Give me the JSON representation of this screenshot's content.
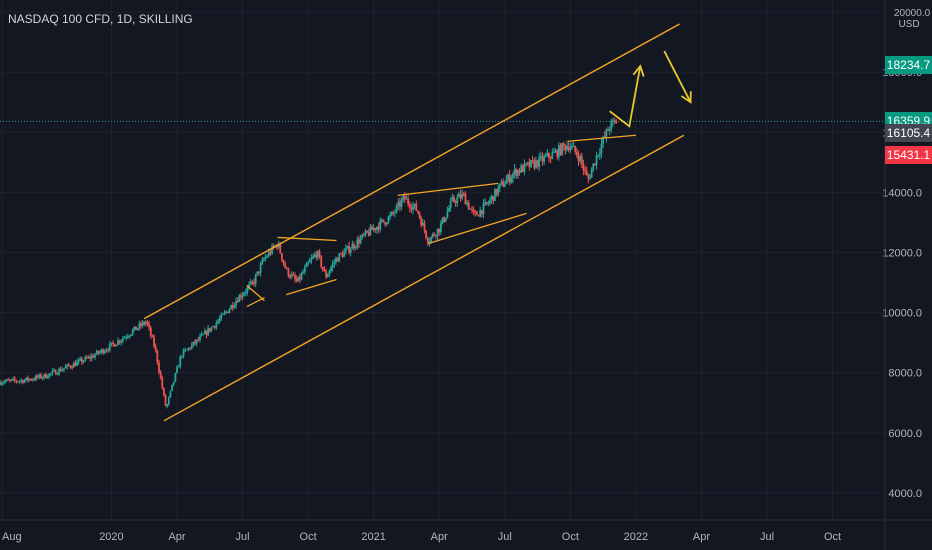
{
  "header": {
    "symbol_line": "NASDAQ 100 CFD, 1D, SKILLING",
    "currency": "USD",
    "top_price": "20000.0"
  },
  "price_tags": [
    {
      "label": "18234.7",
      "value": 18234.7,
      "color": "#089981"
    },
    {
      "label": "16359.9",
      "value": 16359.9,
      "color": "#089981"
    },
    {
      "label": "16105.4",
      "value": 16105.4,
      "color": "#434651"
    },
    {
      "label": "15431.1",
      "value": 15431.1,
      "color": "#f23645"
    }
  ],
  "colors": {
    "background": "#131722",
    "grid": "#1e222d",
    "up": "#26a69a",
    "down": "#ef5350",
    "drawing": "#f5a623",
    "arrow": "#e8c82c"
  },
  "chart_data": {
    "type": "candlestick",
    "y_axis": {
      "ticks": [
        "4000.0",
        "6000.0",
        "8000.0",
        "10000.0",
        "12000.0",
        "14000.0",
        "16000.0",
        "18000.0",
        "20000.0"
      ],
      "tick_values": [
        4000,
        6000,
        8000,
        10000,
        12000,
        14000,
        16000,
        18000,
        20000
      ],
      "range": [
        3100,
        20400
      ]
    },
    "x_axis": {
      "ticks": [
        "Aug",
        "2020",
        "Apr",
        "Jul",
        "Oct",
        "2021",
        "Apr",
        "Jul",
        "Oct",
        "2022",
        "Apr",
        "Jul",
        "Oct"
      ],
      "tick_months": [
        -5,
        0,
        3,
        6,
        9,
        12,
        15,
        18,
        21,
        24,
        27,
        30,
        33
      ],
      "range_months": [
        -5.1,
        35.4
      ]
    },
    "price_path": [
      [
        -5.1,
        7700
      ],
      [
        -4,
        7750
      ],
      [
        -3,
        7900
      ],
      [
        -2,
        8200
      ],
      [
        -1,
        8500
      ],
      [
        0,
        8900
      ],
      [
        0.8,
        9300
      ],
      [
        1.6,
        9700
      ],
      [
        2.0,
        8800
      ],
      [
        2.3,
        7600
      ],
      [
        2.5,
        6800
      ],
      [
        2.8,
        7600
      ],
      [
        3.2,
        8600
      ],
      [
        4,
        9100
      ],
      [
        5,
        9800
      ],
      [
        5.8,
        10500
      ],
      [
        6.5,
        11000
      ],
      [
        7,
        11800
      ],
      [
        7.6,
        12300
      ],
      [
        8.0,
        11400
      ],
      [
        8.5,
        11000
      ],
      [
        9,
        11600
      ],
      [
        9.4,
        12000
      ],
      [
        9.8,
        11200
      ],
      [
        10.3,
        11800
      ],
      [
        11,
        12200
      ],
      [
        12,
        12800
      ],
      [
        12.8,
        13200
      ],
      [
        13.4,
        13800
      ],
      [
        14,
        13400
      ],
      [
        14.5,
        12400
      ],
      [
        15,
        12800
      ],
      [
        15.6,
        13700
      ],
      [
        16.1,
        13900
      ],
      [
        16.6,
        13200
      ],
      [
        17.2,
        13600
      ],
      [
        17.8,
        14200
      ],
      [
        18.5,
        14700
      ],
      [
        19.5,
        15000
      ],
      [
        20.3,
        15300
      ],
      [
        20.9,
        15600
      ],
      [
        21.4,
        15200
      ],
      [
        21.8,
        14400
      ],
      [
        22.3,
        15400
      ],
      [
        22.8,
        16200
      ],
      [
        23.1,
        16350
      ]
    ],
    "drawings": {
      "channel_upper": [
        [
          1.5,
          9800
        ],
        [
          26.0,
          19600
        ]
      ],
      "channel_lower": [
        [
          2.4,
          6400
        ],
        [
          26.2,
          15900
        ]
      ],
      "horizontal_level": 16360,
      "trend_lines": [
        [
          [
            6.2,
            10900
          ],
          [
            7.0,
            10400
          ]
        ],
        [
          [
            6.2,
            10200
          ],
          [
            7.0,
            10500
          ]
        ],
        [
          [
            7.6,
            12500
          ],
          [
            10.3,
            12400
          ]
        ],
        [
          [
            8.0,
            10600
          ],
          [
            10.3,
            11100
          ]
        ],
        [
          [
            13.1,
            13900
          ],
          [
            17.7,
            14300
          ]
        ],
        [
          [
            14.5,
            12300
          ],
          [
            19.0,
            13300
          ]
        ],
        [
          [
            20.9,
            15700
          ],
          [
            24.0,
            15900
          ]
        ]
      ],
      "projection_up": [
        [
          22.8,
          16700
        ],
        [
          23.7,
          16200
        ],
        [
          24.2,
          18200
        ]
      ],
      "projection_down": [
        [
          25.3,
          18700
        ],
        [
          26.5,
          17000
        ]
      ]
    }
  }
}
